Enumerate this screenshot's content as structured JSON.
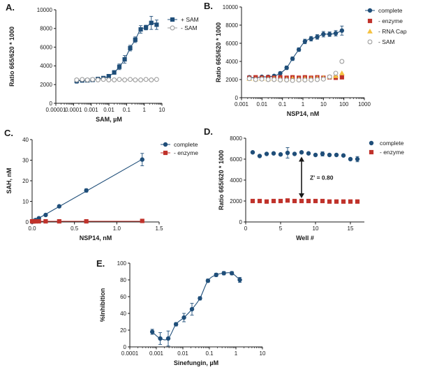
{
  "figure_colors": {
    "complete": "#1f4e79",
    "no_enzyme": "#c0322b",
    "rna_cap": "#f5c242",
    "no_sam": "#9e9e9e",
    "axis": "#1a1a1a"
  },
  "chart_data": [
    {
      "id": "A",
      "panel_label": "A.",
      "type": "scatter",
      "xscale": "log",
      "xlim": [
        1e-05,
        10
      ],
      "ylim": [
        0,
        10000
      ],
      "xticks": [
        1e-05,
        0.0001,
        0.001,
        0.01,
        0.1,
        1,
        10
      ],
      "xtick_labels": [
        "0.00001",
        "0.0001",
        "0.001",
        "0.01",
        "0.1",
        "1",
        "10"
      ],
      "yticks": [
        0,
        2000,
        4000,
        6000,
        8000,
        10000
      ],
      "ytick_labels": [
        "0",
        "2000",
        "4000",
        "6000",
        "8000",
        "10000"
      ],
      "xlabel": "SAM, µM",
      "ylabel": "Ratio 665/620 * 1000",
      "legend_position": "top-right",
      "series": [
        {
          "name": "+ SAM",
          "color_key": "complete",
          "marker": "square",
          "fill": "filled",
          "line": "curve",
          "x": [
            0.00015,
            0.00031,
            0.00061,
            0.0012,
            0.0024,
            0.0049,
            0.0098,
            0.02,
            0.039,
            0.078,
            0.16,
            0.31,
            0.63,
            1.25,
            2.5,
            5
          ],
          "y": [
            2400,
            2450,
            2450,
            2500,
            2600,
            2700,
            2900,
            3300,
            3900,
            4700,
            5900,
            6800,
            7900,
            8100,
            8600,
            8400
          ],
          "err": [
            250,
            200,
            150,
            150,
            150,
            150,
            150,
            200,
            300,
            400,
            300,
            300,
            400,
            250,
            700,
            500
          ]
        },
        {
          "name": "- SAM",
          "color_key": "no_sam",
          "marker": "circle",
          "fill": "open",
          "line": "straight",
          "x": [
            0.00015,
            0.00031,
            0.00061,
            0.0012,
            0.0024,
            0.0049,
            0.0098,
            0.02,
            0.039,
            0.078,
            0.16,
            0.31,
            0.63,
            1.25,
            2.5,
            5
          ],
          "y": [
            2500,
            2550,
            2500,
            2550,
            2500,
            2550,
            2500,
            2500,
            2550,
            2500,
            2550,
            2500,
            2500,
            2550,
            2500,
            2550
          ],
          "err": []
        }
      ]
    },
    {
      "id": "B",
      "panel_label": "B.",
      "type": "scatter",
      "xscale": "log",
      "xlim": [
        0.001,
        1000
      ],
      "ylim": [
        0,
        10000
      ],
      "xticks": [
        0.001,
        0.01,
        0.1,
        1,
        10,
        100,
        1000
      ],
      "xtick_labels": [
        "0.001",
        "0.01",
        "0.1",
        "1",
        "10",
        "100",
        "1000"
      ],
      "yticks": [
        0,
        2000,
        4000,
        6000,
        8000,
        10000
      ],
      "ytick_labels": [
        "0",
        "2000",
        "4000",
        "6000",
        "8000",
        "10000"
      ],
      "xlabel": "NSP14, nM",
      "ylabel": "Ratio 665/620 * 1000",
      "legend_position": "right",
      "series": [
        {
          "name": "complete",
          "color_key": "complete",
          "marker": "circle",
          "fill": "filled",
          "line": "curve",
          "x": [
            0.0024,
            0.0049,
            0.0098,
            0.02,
            0.039,
            0.078,
            0.16,
            0.31,
            0.63,
            1.25,
            2.5,
            5,
            10,
            20,
            40,
            80
          ],
          "y": [
            2250,
            2200,
            2300,
            2300,
            2400,
            2700,
            3300,
            4300,
            5300,
            6200,
            6500,
            6700,
            7000,
            7000,
            7100,
            7400
          ],
          "err": [
            150,
            100,
            100,
            100,
            100,
            150,
            200,
            200,
            200,
            250,
            250,
            250,
            300,
            250,
            300,
            500
          ]
        },
        {
          "name": "- enzyme",
          "color_key": "no_enzyme",
          "marker": "square",
          "fill": "filled",
          "line": "none",
          "x": [
            0.0024,
            0.0049,
            0.0098,
            0.02,
            0.039,
            0.078,
            0.16,
            0.31,
            0.63,
            1.25,
            2.5,
            5,
            10,
            20,
            40,
            80
          ],
          "y": [
            2200,
            2250,
            2200,
            2250,
            2200,
            2250,
            2200,
            2250,
            2200,
            2250,
            2200,
            2250,
            2200,
            2250,
            2200,
            2250
          ],
          "err": []
        },
        {
          "name": "- RNA Cap",
          "color_key": "rna_cap",
          "marker": "triangle",
          "fill": "filled",
          "line": "none",
          "x": [
            0.0024,
            0.0049,
            0.0098,
            0.02,
            0.039,
            0.078,
            0.16,
            0.31,
            0.63,
            1.25,
            2.5,
            5,
            10,
            20,
            40,
            80
          ],
          "y": [
            2100,
            2050,
            2100,
            2050,
            2100,
            2050,
            2050,
            2100,
            2050,
            2100,
            2100,
            2150,
            2200,
            2300,
            2400,
            2700
          ],
          "err": []
        },
        {
          "name": "- SAM",
          "color_key": "no_sam",
          "marker": "circle",
          "fill": "open",
          "line": "none",
          "x": [
            0.0024,
            0.0049,
            0.0098,
            0.02,
            0.039,
            0.078,
            0.16,
            0.31,
            0.63,
            1.25,
            2.5,
            5,
            10,
            20,
            40,
            80
          ],
          "y": [
            2100,
            2000,
            2050,
            2000,
            2000,
            1950,
            1950,
            1900,
            1950,
            1950,
            1950,
            2000,
            2050,
            2300,
            2700,
            4000
          ],
          "err": []
        }
      ]
    },
    {
      "id": "C",
      "panel_label": "C.",
      "type": "scatter",
      "xscale": "linear",
      "xlim": [
        0,
        1.5
      ],
      "ylim": [
        0,
        40
      ],
      "xticks": [
        0,
        0.5,
        1.0,
        1.5
      ],
      "xtick_labels": [
        "0.0",
        "0.5",
        "1.0",
        "1.5"
      ],
      "yticks": [
        0,
        10,
        20,
        30,
        40
      ],
      "ytick_labels": [
        "0",
        "10",
        "20",
        "30",
        "40"
      ],
      "xlabel": "NSP14, nM",
      "ylabel": "SAH, nM",
      "legend_position": "top-right",
      "series": [
        {
          "name": "complete",
          "color_key": "complete",
          "marker": "circle",
          "fill": "filled",
          "line": "linear-fit",
          "x": [
            0.0,
            0.01,
            0.02,
            0.04,
            0.08,
            0.16,
            0.32,
            0.64,
            1.3
          ],
          "y": [
            0.1,
            0.2,
            0.5,
            0.9,
            1.8,
            3.4,
            7.6,
            15.3,
            30.3
          ],
          "err": [
            0,
            0,
            0,
            0,
            0,
            0,
            0,
            0.8,
            3.0
          ]
        },
        {
          "name": "- enzyme",
          "color_key": "no_enzyme",
          "marker": "square",
          "fill": "filled",
          "line": "flat",
          "x": [
            0.0,
            0.01,
            0.02,
            0.04,
            0.08,
            0.16,
            0.32,
            0.64,
            1.3
          ],
          "y": [
            0.3,
            0.3,
            0.3,
            0.3,
            0.3,
            0.3,
            0.3,
            0.3,
            0.5
          ],
          "err": []
        }
      ]
    },
    {
      "id": "D",
      "panel_label": "D.",
      "type": "scatter",
      "xscale": "linear",
      "xlim": [
        0,
        17
      ],
      "ylim": [
        0,
        8000
      ],
      "xticks": [
        0,
        5,
        10,
        15
      ],
      "xtick_labels": [
        "0",
        "5",
        "10",
        "15"
      ],
      "yticks": [
        0,
        2000,
        4000,
        6000,
        8000
      ],
      "ytick_labels": [
        "0",
        "2000",
        "4000",
        "6000",
        "8000"
      ],
      "xlabel": "Well #",
      "ylabel": "Ratio 665/620 * 1000",
      "legend_position": "top-right",
      "annotation": "Z' = 0.80",
      "arrow_between": [
        2000,
        6500
      ],
      "arrow_at_x": 8,
      "series": [
        {
          "name": "complete",
          "color_key": "complete",
          "marker": "circle",
          "fill": "filled",
          "line": "none",
          "x": [
            1,
            2,
            3,
            4,
            5,
            6,
            7,
            8,
            9,
            10,
            11,
            12,
            13,
            14,
            15,
            16
          ],
          "y": [
            6650,
            6300,
            6500,
            6550,
            6450,
            6600,
            6500,
            6650,
            6550,
            6400,
            6500,
            6400,
            6400,
            6350,
            6000,
            6000
          ],
          "err": [
            0,
            0,
            0,
            0,
            0,
            500,
            0,
            0,
            0,
            0,
            200,
            0,
            0,
            0,
            0,
            250
          ]
        },
        {
          "name": "- enzyme",
          "color_key": "no_enzyme",
          "marker": "square",
          "fill": "filled",
          "line": "none",
          "x": [
            1,
            2,
            3,
            4,
            5,
            6,
            7,
            8,
            9,
            10,
            11,
            12,
            13,
            14,
            15,
            16
          ],
          "y": [
            2000,
            2000,
            1950,
            2000,
            2000,
            2050,
            2000,
            2000,
            2000,
            2000,
            2000,
            1950,
            1950,
            1950,
            1950,
            1950
          ],
          "err": []
        }
      ]
    },
    {
      "id": "E",
      "panel_label": "E.",
      "type": "scatter",
      "xscale": "log",
      "xlim": [
        0.0001,
        10
      ],
      "ylim": [
        0,
        100
      ],
      "xticks": [
        0.0001,
        0.001,
        0.01,
        0.1,
        1,
        10
      ],
      "xtick_labels": [
        "0.0001",
        "0.001",
        "0.01",
        "0.1",
        "1",
        "10"
      ],
      "yticks": [
        0,
        20,
        40,
        60,
        80,
        100
      ],
      "ytick_labels": [
        "0",
        "20",
        "40",
        "60",
        "80",
        "100"
      ],
      "xlabel": "Sinefungin, µM",
      "ylabel": "%Inhibition",
      "legend_position": "none",
      "series": [
        {
          "name": "Sinefungin",
          "color_key": "complete",
          "marker": "circle",
          "fill": "filled",
          "line": "curve",
          "x": [
            0.0007,
            0.0014,
            0.0028,
            0.0055,
            0.011,
            0.022,
            0.044,
            0.088,
            0.18,
            0.35,
            0.7,
            1.4
          ],
          "y": [
            18,
            10,
            10,
            27,
            35,
            45,
            58,
            79,
            86,
            88,
            88,
            80
          ],
          "err": [
            3,
            7,
            9,
            2,
            5,
            7,
            2,
            2,
            2,
            2,
            2,
            3
          ]
        }
      ]
    }
  ]
}
